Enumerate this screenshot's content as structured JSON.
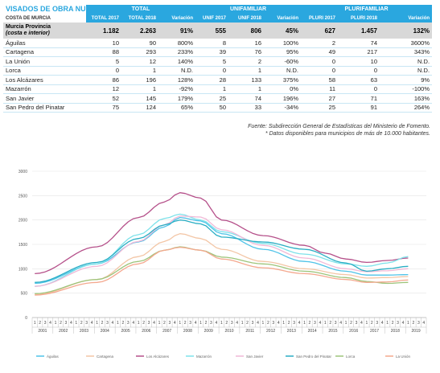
{
  "table": {
    "title": "VISADOS DE OBRA NUEVA",
    "subtitle": "COSTA DE MURCIA",
    "groups": [
      "TOTAL",
      "UNIFAMILIAR",
      "PLURIFAMILIAR"
    ],
    "columns": [
      "TOTAL 2017",
      "TOTAL 2018",
      "Variación",
      "UNIF 2017",
      "UNIF 2018",
      "Variación",
      "PLURI 2017",
      "PLURI 2018",
      "Variación"
    ],
    "highlight": {
      "name_line1": "Murcia Provincia",
      "name_line2": "(costa e interior)",
      "values": [
        "1.182",
        "2.263",
        "91%",
        "555",
        "806",
        "45%",
        "627",
        "1.457",
        "132%"
      ]
    },
    "rows": [
      {
        "name": "Águilas",
        "values": [
          "10",
          "90",
          "800%",
          "8",
          "16",
          "100%",
          "2",
          "74",
          "3600%"
        ]
      },
      {
        "name": "Cartagena",
        "values": [
          "88",
          "293",
          "233%",
          "39",
          "76",
          "95%",
          "49",
          "217",
          "343%"
        ]
      },
      {
        "name": "La Unión",
        "values": [
          "5",
          "12",
          "140%",
          "5",
          "2",
          "-60%",
          "0",
          "10",
          "N.D."
        ]
      },
      {
        "name": "Lorca",
        "values": [
          "0",
          "1",
          "N.D.",
          "0",
          "1",
          "N.D.",
          "0",
          "0",
          "N.D."
        ]
      },
      {
        "name": "Los Alcázares",
        "values": [
          "86",
          "196",
          "128%",
          "28",
          "133",
          "375%",
          "58",
          "63",
          "9%"
        ]
      },
      {
        "name": "Mazarrón",
        "values": [
          "12",
          "1",
          "-92%",
          "1",
          "1",
          "0%",
          "11",
          "0",
          "-100%"
        ]
      },
      {
        "name": "San Javier",
        "values": [
          "52",
          "145",
          "179%",
          "25",
          "74",
          "196%",
          "27",
          "71",
          "163%"
        ]
      },
      {
        "name": "San Pedro del Pinatar",
        "values": [
          "75",
          "124",
          "65%",
          "50",
          "33",
          "-34%",
          "25",
          "91",
          "264%"
        ]
      }
    ]
  },
  "source": {
    "line1": "Fuente: Subdirección General de Estadísticas del Ministerio de Fomento.",
    "line2": "* Datos disponibles para municipios de más de 10.000 habitantes."
  },
  "chart_data": {
    "type": "line",
    "quarters": [
      "1",
      "2",
      "3",
      "4"
    ],
    "years": [
      "2001",
      "2002",
      "2003",
      "2004",
      "2005",
      "2006",
      "2007",
      "2008",
      "2009",
      "2010",
      "2011",
      "2012",
      "2013",
      "2014",
      "2015",
      "2016",
      "2017",
      "2018",
      "2019"
    ],
    "ylim": [
      0,
      3000
    ],
    "yticks": [
      0,
      500,
      1000,
      1500,
      2000,
      2500,
      3000
    ],
    "grid": true,
    "legend_position": "bottom",
    "series": [
      {
        "name": "Águilas",
        "color": "#4fc3e8",
        "anchors": [
          [
            0,
            700
          ],
          [
            12,
            1100
          ],
          [
            20,
            1550
          ],
          [
            25,
            1860
          ],
          [
            28,
            2050
          ],
          [
            32,
            1980
          ],
          [
            36,
            1720
          ],
          [
            44,
            1400
          ],
          [
            52,
            1150
          ],
          [
            60,
            950
          ],
          [
            64,
            870
          ],
          [
            68,
            870
          ],
          [
            72,
            880
          ]
        ]
      },
      {
        "name": "Cartagena",
        "color": "#f3c6a6",
        "anchors": [
          [
            0,
            470
          ],
          [
            12,
            780
          ],
          [
            20,
            1250
          ],
          [
            25,
            1560
          ],
          [
            28,
            1720
          ],
          [
            32,
            1620
          ],
          [
            36,
            1400
          ],
          [
            44,
            1150
          ],
          [
            52,
            1000
          ],
          [
            60,
            880
          ],
          [
            64,
            810
          ],
          [
            68,
            820
          ],
          [
            72,
            840
          ]
        ]
      },
      {
        "name": "Los Alcázares",
        "color": "#b5508a",
        "anchors": [
          [
            0,
            900
          ],
          [
            12,
            1450
          ],
          [
            20,
            2050
          ],
          [
            25,
            2370
          ],
          [
            28,
            2560
          ],
          [
            32,
            2450
          ],
          [
            36,
            2000
          ],
          [
            44,
            1680
          ],
          [
            52,
            1480
          ],
          [
            56,
            1320
          ],
          [
            60,
            1200
          ],
          [
            64,
            1130
          ],
          [
            68,
            1170
          ],
          [
            72,
            1220
          ]
        ]
      },
      {
        "name": "Mazarrón",
        "color": "#7ee2ea",
        "anchors": [
          [
            0,
            640
          ],
          [
            12,
            1100
          ],
          [
            20,
            1700
          ],
          [
            25,
            2030
          ],
          [
            28,
            2120
          ],
          [
            32,
            2000
          ],
          [
            36,
            1760
          ],
          [
            44,
            1520
          ],
          [
            52,
            1300
          ],
          [
            60,
            1100
          ],
          [
            64,
            1050
          ],
          [
            68,
            1120
          ],
          [
            72,
            1250
          ]
        ]
      },
      {
        "name": "San Javier",
        "color": "#f0b9d7",
        "anchors": [
          [
            0,
            640
          ],
          [
            12,
            1050
          ],
          [
            20,
            1560
          ],
          [
            25,
            1900
          ],
          [
            28,
            2080
          ],
          [
            32,
            2060
          ],
          [
            36,
            1800
          ],
          [
            44,
            1480
          ],
          [
            52,
            1220
          ],
          [
            60,
            1000
          ],
          [
            64,
            940
          ],
          [
            68,
            960
          ],
          [
            72,
            1000
          ]
        ]
      },
      {
        "name": "San Pedro del Pinatar",
        "color": "#2aaec4",
        "anchors": [
          [
            0,
            720
          ],
          [
            12,
            1130
          ],
          [
            20,
            1620
          ],
          [
            25,
            1900
          ],
          [
            28,
            2000
          ],
          [
            32,
            1920
          ],
          [
            36,
            1650
          ],
          [
            44,
            1550
          ],
          [
            52,
            1400
          ],
          [
            60,
            1120
          ],
          [
            64,
            950
          ],
          [
            68,
            1000
          ],
          [
            72,
            1050
          ]
        ]
      },
      {
        "name": "Lorca",
        "color": "#9dc47a",
        "anchors": [
          [
            0,
            490
          ],
          [
            12,
            780
          ],
          [
            20,
            1150
          ],
          [
            25,
            1380
          ],
          [
            28,
            1450
          ],
          [
            32,
            1380
          ],
          [
            36,
            1240
          ],
          [
            44,
            1100
          ],
          [
            52,
            950
          ],
          [
            60,
            820
          ],
          [
            64,
            740
          ],
          [
            68,
            700
          ],
          [
            72,
            720
          ]
        ]
      },
      {
        "name": "La Unión",
        "color": "#f4a88e",
        "anchors": [
          [
            0,
            460
          ],
          [
            12,
            720
          ],
          [
            20,
            1100
          ],
          [
            25,
            1380
          ],
          [
            28,
            1440
          ],
          [
            32,
            1380
          ],
          [
            36,
            1200
          ],
          [
            44,
            1020
          ],
          [
            52,
            900
          ],
          [
            60,
            780
          ],
          [
            64,
            720
          ],
          [
            68,
            730
          ],
          [
            72,
            770
          ]
        ]
      }
    ]
  }
}
